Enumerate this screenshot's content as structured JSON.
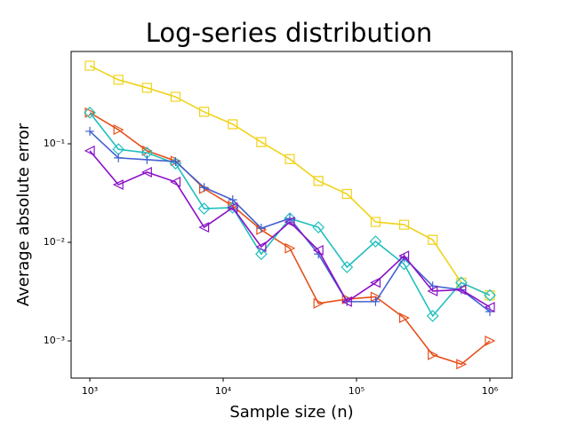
{
  "chart_data": {
    "type": "line",
    "title": "Log-series distribution",
    "x_label": "Sample size (n)",
    "y_label": "Average absolute error",
    "xscale": "log",
    "yscale": "log",
    "xlim": [
      724,
      1468000
    ],
    "ylim": [
      0.000419,
      0.865
    ],
    "xticks": [
      {
        "value": 1000,
        "label": "10³"
      },
      {
        "value": 10000,
        "label": "10⁴"
      },
      {
        "value": 100000,
        "label": "10⁵"
      },
      {
        "value": 1000000,
        "label": "10⁶"
      }
    ],
    "yticks": [
      {
        "value": 0.001,
        "label": "10⁻³"
      },
      {
        "value": 0.01,
        "label": "10⁻²"
      },
      {
        "value": 0.1,
        "label": "10⁻¹"
      }
    ],
    "x": [
      1000,
      1638,
      2683,
      4394,
      7197,
      11788,
      19307,
      31623,
      51795,
      84834,
      138950,
      227585,
      372759,
      610540,
      1000000
    ],
    "series": [
      {
        "color": "#f0d21a",
        "marker": "square",
        "values": [
          0.62,
          0.446,
          0.37,
          0.3,
          0.211,
          0.158,
          0.104,
          0.07,
          0.042,
          0.031,
          0.0161,
          0.0151,
          0.0106,
          0.0039,
          0.0029
        ]
      },
      {
        "color": "#e6501a",
        "marker": "triangle-right",
        "values": [
          0.207,
          0.139,
          0.085,
          0.067,
          0.035,
          0.0234,
          0.0134,
          0.0087,
          0.0024,
          0.00265,
          0.0028,
          0.00171,
          0.00072,
          0.00058,
          0.001
        ]
      },
      {
        "color": "#20bfbf",
        "marker": "diamond",
        "values": [
          0.207,
          0.088,
          0.081,
          0.063,
          0.022,
          0.0225,
          0.0076,
          0.0175,
          0.0142,
          0.0056,
          0.0102,
          0.006,
          0.00179,
          0.0039,
          0.0029
        ]
      },
      {
        "color": "#4060d0",
        "marker": "plus",
        "values": [
          0.134,
          0.072,
          0.069,
          0.066,
          0.036,
          0.027,
          0.0139,
          0.0175,
          0.0076,
          0.0025,
          0.0025,
          0.007,
          0.0036,
          0.0033,
          0.00198
        ]
      },
      {
        "color": "#8b10c8",
        "marker": "triangle-left",
        "values": [
          0.085,
          0.0385,
          0.0515,
          0.041,
          0.0142,
          0.0225,
          0.009,
          0.0161,
          0.0083,
          0.0025,
          0.0039,
          0.0073,
          0.0032,
          0.0033,
          0.0022
        ]
      }
    ]
  }
}
